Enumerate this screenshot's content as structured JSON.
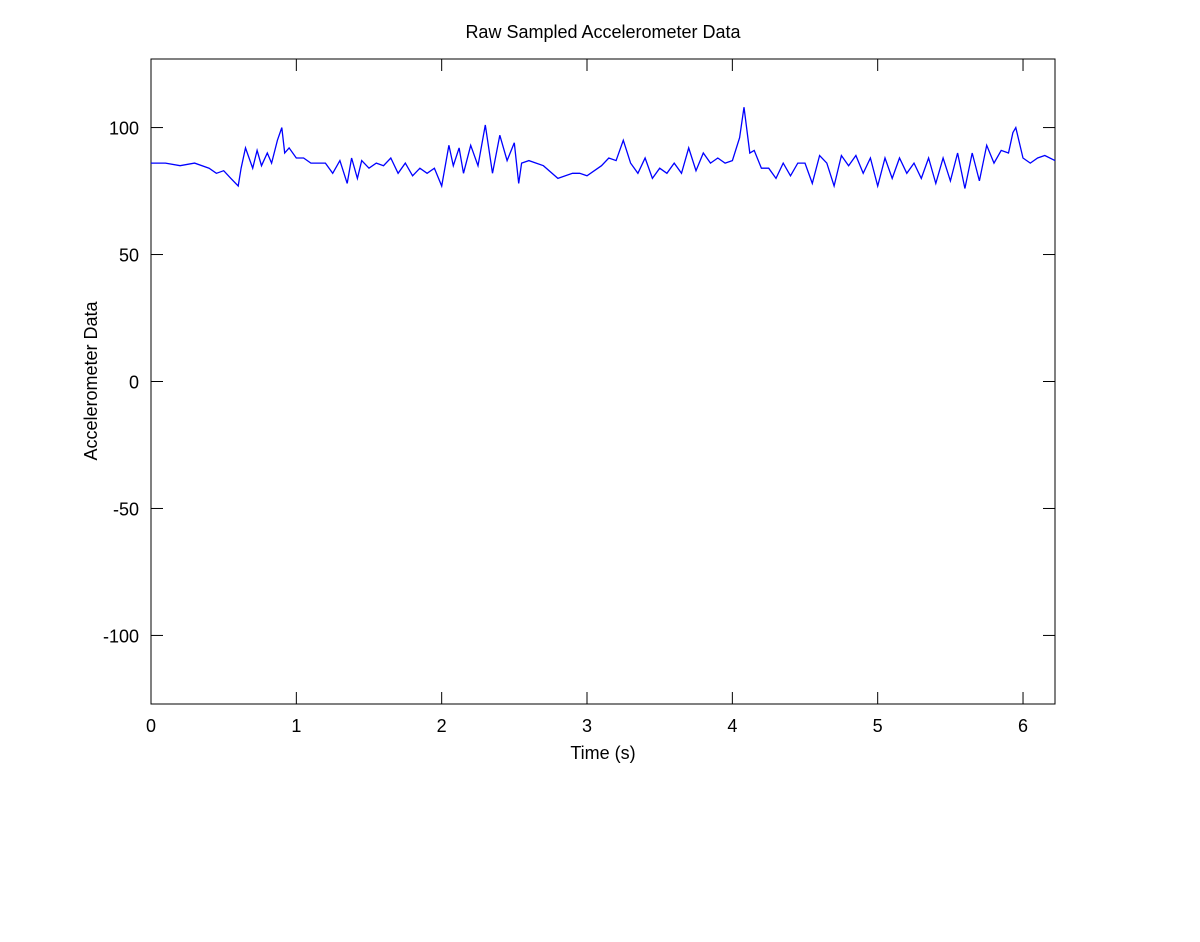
{
  "chart_data": {
    "type": "line",
    "title": "Raw Sampled Accelerometer Data",
    "xlabel": "Time (s)",
    "ylabel": "Accelerometer Data",
    "xlim": [
      0,
      6.22
    ],
    "ylim": [
      -127,
      127
    ],
    "xticks": [
      0,
      1,
      2,
      3,
      4,
      5,
      6
    ],
    "yticks": [
      100,
      50,
      0,
      -50,
      -100
    ],
    "grid": false,
    "legend": "none",
    "series_color": "#0000ff",
    "series": [
      {
        "x": [
          0,
          0.1,
          0.2,
          0.3,
          0.4,
          0.45,
          0.5,
          0.55,
          0.6,
          0.62,
          0.65,
          0.7,
          0.73,
          0.76,
          0.8,
          0.83,
          0.87,
          0.9,
          0.92,
          0.95,
          1.0,
          1.05,
          1.1,
          1.2,
          1.25,
          1.3,
          1.35,
          1.38,
          1.42,
          1.45,
          1.5,
          1.55,
          1.6,
          1.65,
          1.7,
          1.75,
          1.8,
          1.85,
          1.9,
          1.95,
          2.0,
          2.05,
          2.08,
          2.12,
          2.15,
          2.2,
          2.25,
          2.3,
          2.35,
          2.4,
          2.45,
          2.5,
          2.53,
          2.55,
          2.6,
          2.65,
          2.7,
          2.8,
          2.9,
          2.95,
          3.0,
          3.1,
          3.15,
          3.2,
          3.25,
          3.3,
          3.35,
          3.4,
          3.45,
          3.5,
          3.55,
          3.6,
          3.65,
          3.7,
          3.75,
          3.8,
          3.85,
          3.9,
          3.95,
          4.0,
          4.05,
          4.08,
          4.12,
          4.15,
          4.2,
          4.25,
          4.3,
          4.35,
          4.4,
          4.45,
          4.5,
          4.55,
          4.6,
          4.65,
          4.7,
          4.75,
          4.8,
          4.85,
          4.9,
          4.95,
          5.0,
          5.05,
          5.1,
          5.15,
          5.2,
          5.25,
          5.3,
          5.35,
          5.4,
          5.45,
          5.5,
          5.55,
          5.6,
          5.65,
          5.7,
          5.75,
          5.8,
          5.85,
          5.9,
          5.93,
          5.95,
          6.0,
          6.05,
          6.1,
          6.15,
          6.22
        ],
        "y": [
          86,
          86,
          85,
          86,
          84,
          82,
          83,
          80,
          77,
          84,
          92,
          84,
          91,
          85,
          90,
          86,
          95,
          100,
          90,
          92,
          88,
          88,
          86,
          86,
          82,
          87,
          78,
          88,
          80,
          87,
          84,
          86,
          85,
          88,
          82,
          86,
          81,
          84,
          82,
          84,
          77,
          93,
          85,
          92,
          82,
          93,
          85,
          101,
          82,
          97,
          87,
          94,
          78,
          86,
          87,
          86,
          85,
          80,
          82,
          82,
          81,
          85,
          88,
          87,
          95,
          86,
          82,
          88,
          80,
          84,
          82,
          86,
          82,
          92,
          83,
          90,
          86,
          88,
          86,
          87,
          96,
          108,
          90,
          91,
          84,
          84,
          80,
          86,
          81,
          86,
          86,
          78,
          89,
          86,
          77,
          89,
          85,
          89,
          82,
          88,
          77,
          88,
          80,
          88,
          82,
          86,
          80,
          88,
          78,
          88,
          79,
          90,
          76,
          90,
          79,
          93,
          86,
          91,
          90,
          98,
          100,
          88,
          86,
          88,
          89,
          87
        ]
      }
    ]
  }
}
